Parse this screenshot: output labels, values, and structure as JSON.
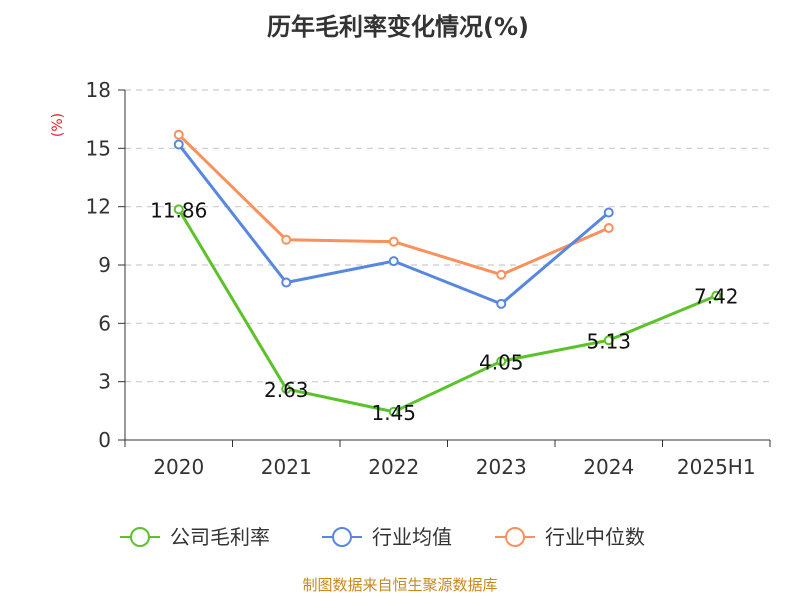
{
  "chart_data": {
    "type": "line",
    "title": "历年毛利率变化情况(%)",
    "ylabel": "(%)",
    "xlabel": "",
    "categories": [
      "2020",
      "2021",
      "2022",
      "2023",
      "2024",
      "2025H1"
    ],
    "ylim": [
      0,
      18
    ],
    "yticks": [
      "0",
      "3",
      "6",
      "9",
      "12",
      "15",
      "18"
    ],
    "grid": true,
    "legend_position": "bottom",
    "series": [
      {
        "name": "公司毛利率",
        "color": "#5cc22c",
        "values": [
          11.86,
          2.63,
          1.45,
          4.05,
          5.13,
          7.42
        ],
        "labels": [
          "11.86",
          "2.63",
          "1.45",
          "4.05",
          "5.13",
          "7.42"
        ]
      },
      {
        "name": "行业均值",
        "color": "#5887e0",
        "values": [
          15.2,
          8.1,
          9.2,
          7.0,
          11.7,
          null
        ]
      },
      {
        "name": "行业中位数",
        "color": "#f8915c",
        "values": [
          15.7,
          10.3,
          10.2,
          8.5,
          10.9,
          null
        ]
      }
    ]
  },
  "footer": "制图数据来自恒生聚源数据库"
}
